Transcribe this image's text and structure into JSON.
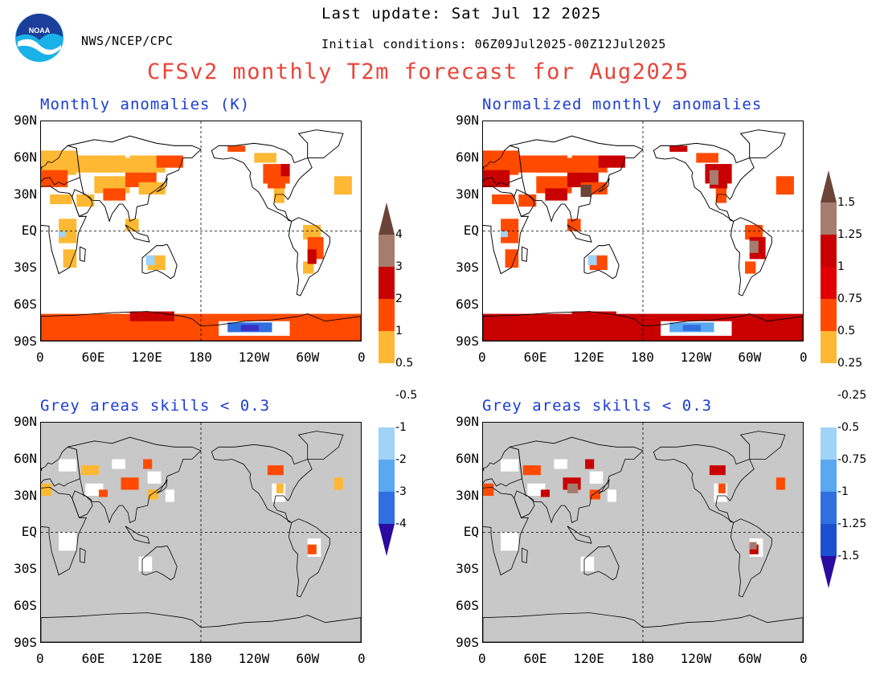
{
  "header": {
    "agency": "NWS/NCEP/CPC",
    "last_update": "Last update: Sat Jul 12 2025",
    "initial_conditions": "Initial conditions: 06Z09Jul2025-00Z12Jul2025",
    "title": "CFSv2 monthly T2m forecast for Aug2025",
    "logo_text": "NOAA"
  },
  "panels": {
    "top_left_title": "Monthly anomalies (K)",
    "top_right_title": "Normalized monthly anomalies",
    "bottom_left_title": "Grey areas skills < 0.3",
    "bottom_right_title": "Grey areas skills < 0.3"
  },
  "axes": {
    "lat_labels": [
      "90N",
      "60N",
      "30N",
      "EQ",
      "30S",
      "60S",
      "90S"
    ],
    "lon_labels": [
      "0",
      "60E",
      "120E",
      "180",
      "120W",
      "60W",
      "0"
    ]
  },
  "colorbar_k": {
    "labels": [
      "4",
      "3",
      "2",
      "1",
      "0.5",
      "-0.5",
      "-1",
      "-2",
      "-3",
      "-4"
    ]
  },
  "colorbar_norm": {
    "labels": [
      "1.5",
      "1.25",
      "1",
      "0.75",
      "0.5",
      "0.25",
      "-0.25",
      "-0.5",
      "-0.75",
      "-1",
      "-1.25",
      "-1.5"
    ]
  },
  "colors": {
    "title_red": "#e8443a",
    "panel_blue": "#1a3dd6",
    "skill_grey": "#c8c8c8",
    "warm": [
      "#ffb833",
      "#ff4a00",
      "#c80000",
      "#a67c6e",
      "#6b4437"
    ],
    "cool": [
      "#9fd3f8",
      "#5aa8f0",
      "#2f6fe0",
      "#3b2fc8",
      "#2a0aa0"
    ]
  }
}
